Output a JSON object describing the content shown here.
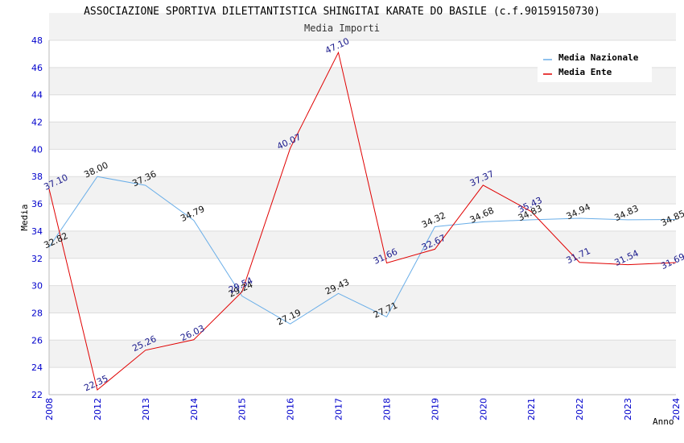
{
  "chart_data": {
    "type": "line",
    "title": "ASSOCIAZIONE SPORTIVA DILETTANTISTICA SHINGITAI KARATE DO BASILE (c.f.90159150730)",
    "subtitle": "Media Importi",
    "xlabel": "Anno",
    "ylabel": "Media",
    "ylim": [
      22,
      48
    ],
    "yticks": [
      "22",
      "24",
      "26",
      "28",
      "30",
      "32",
      "34",
      "36",
      "38",
      "40",
      "42",
      "44",
      "46",
      "48"
    ],
    "categories": [
      "2008",
      "2012",
      "2013",
      "2014",
      "2015",
      "2016",
      "2017",
      "2018",
      "2019",
      "2020",
      "2021",
      "2022",
      "2023",
      "2024"
    ],
    "grid": true,
    "legend_position": "top-right",
    "series": [
      {
        "name": "Media Nazionale",
        "color": "#6aaee8",
        "label_color": "#111111",
        "values": [
          32.82,
          38.0,
          37.36,
          34.79,
          29.24,
          27.19,
          29.43,
          27.71,
          34.32,
          34.68,
          34.83,
          34.94,
          34.83,
          34.85
        ],
        "labels": [
          "32.82",
          "38.00",
          "37.36",
          "34.79",
          "29.24",
          "27.19",
          "29.43",
          "27.71",
          "34.32",
          "34.68",
          "34.83",
          "34.94",
          "34.83",
          "34.85"
        ]
      },
      {
        "name": "Media Ente",
        "color": "#e00000",
        "label_color": "#1a1a8c",
        "values": [
          37.1,
          22.35,
          25.26,
          26.03,
          29.54,
          40.07,
          47.1,
          31.66,
          32.67,
          37.37,
          35.43,
          31.71,
          31.54,
          31.69
        ],
        "labels": [
          "37.10",
          "22.35",
          "25.26",
          "26.03",
          "29.54",
          "40.07",
          "47.10",
          "31.66",
          "32.67",
          "37.37",
          "35.43",
          "31.71",
          "31.54",
          "31.69"
        ]
      }
    ]
  }
}
